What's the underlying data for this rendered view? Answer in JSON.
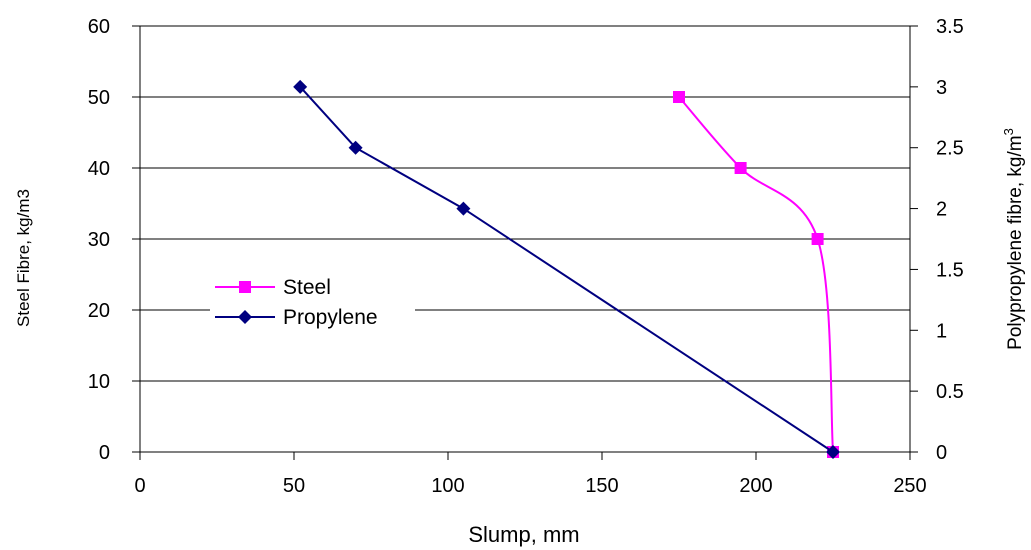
{
  "chart_data": {
    "type": "line",
    "title": "",
    "xlabel": "Slump, mm",
    "ylabel": "Steel Fibre, kg/m3",
    "ylabel_right": {
      "text": "Polypropylene fibre, kg/m",
      "superscript": "3"
    },
    "xlim": [
      0,
      250
    ],
    "ylim": [
      0,
      60
    ],
    "ylim_right": [
      0,
      3.5
    ],
    "x_ticks": [
      "0",
      "50",
      "100",
      "150",
      "200",
      "250"
    ],
    "y_ticks": [
      "0",
      "10",
      "20",
      "30",
      "40",
      "50",
      "60"
    ],
    "y_ticks_right": [
      "0",
      "0.5",
      "1",
      "1.5",
      "2",
      "2.5",
      "3",
      "3.5"
    ],
    "grid": "horizontal",
    "legend_placement": "left-middle",
    "series": [
      {
        "name": "Steel",
        "axis": "left",
        "color": "#ff00ff",
        "marker": "square",
        "smooth": true,
        "points": [
          {
            "x": 175,
            "y": 50
          },
          {
            "x": 195,
            "y": 40
          },
          {
            "x": 220,
            "y": 30
          },
          {
            "x": 225,
            "y": 0
          }
        ]
      },
      {
        "name": "Propylene",
        "axis": "right",
        "color": "#000080",
        "marker": "diamond",
        "smooth": false,
        "points": [
          {
            "x": 52,
            "y": 3
          },
          {
            "x": 70,
            "y": 2.5
          },
          {
            "x": 105,
            "y": 2
          },
          {
            "x": 225,
            "y": 0
          }
        ]
      }
    ]
  }
}
